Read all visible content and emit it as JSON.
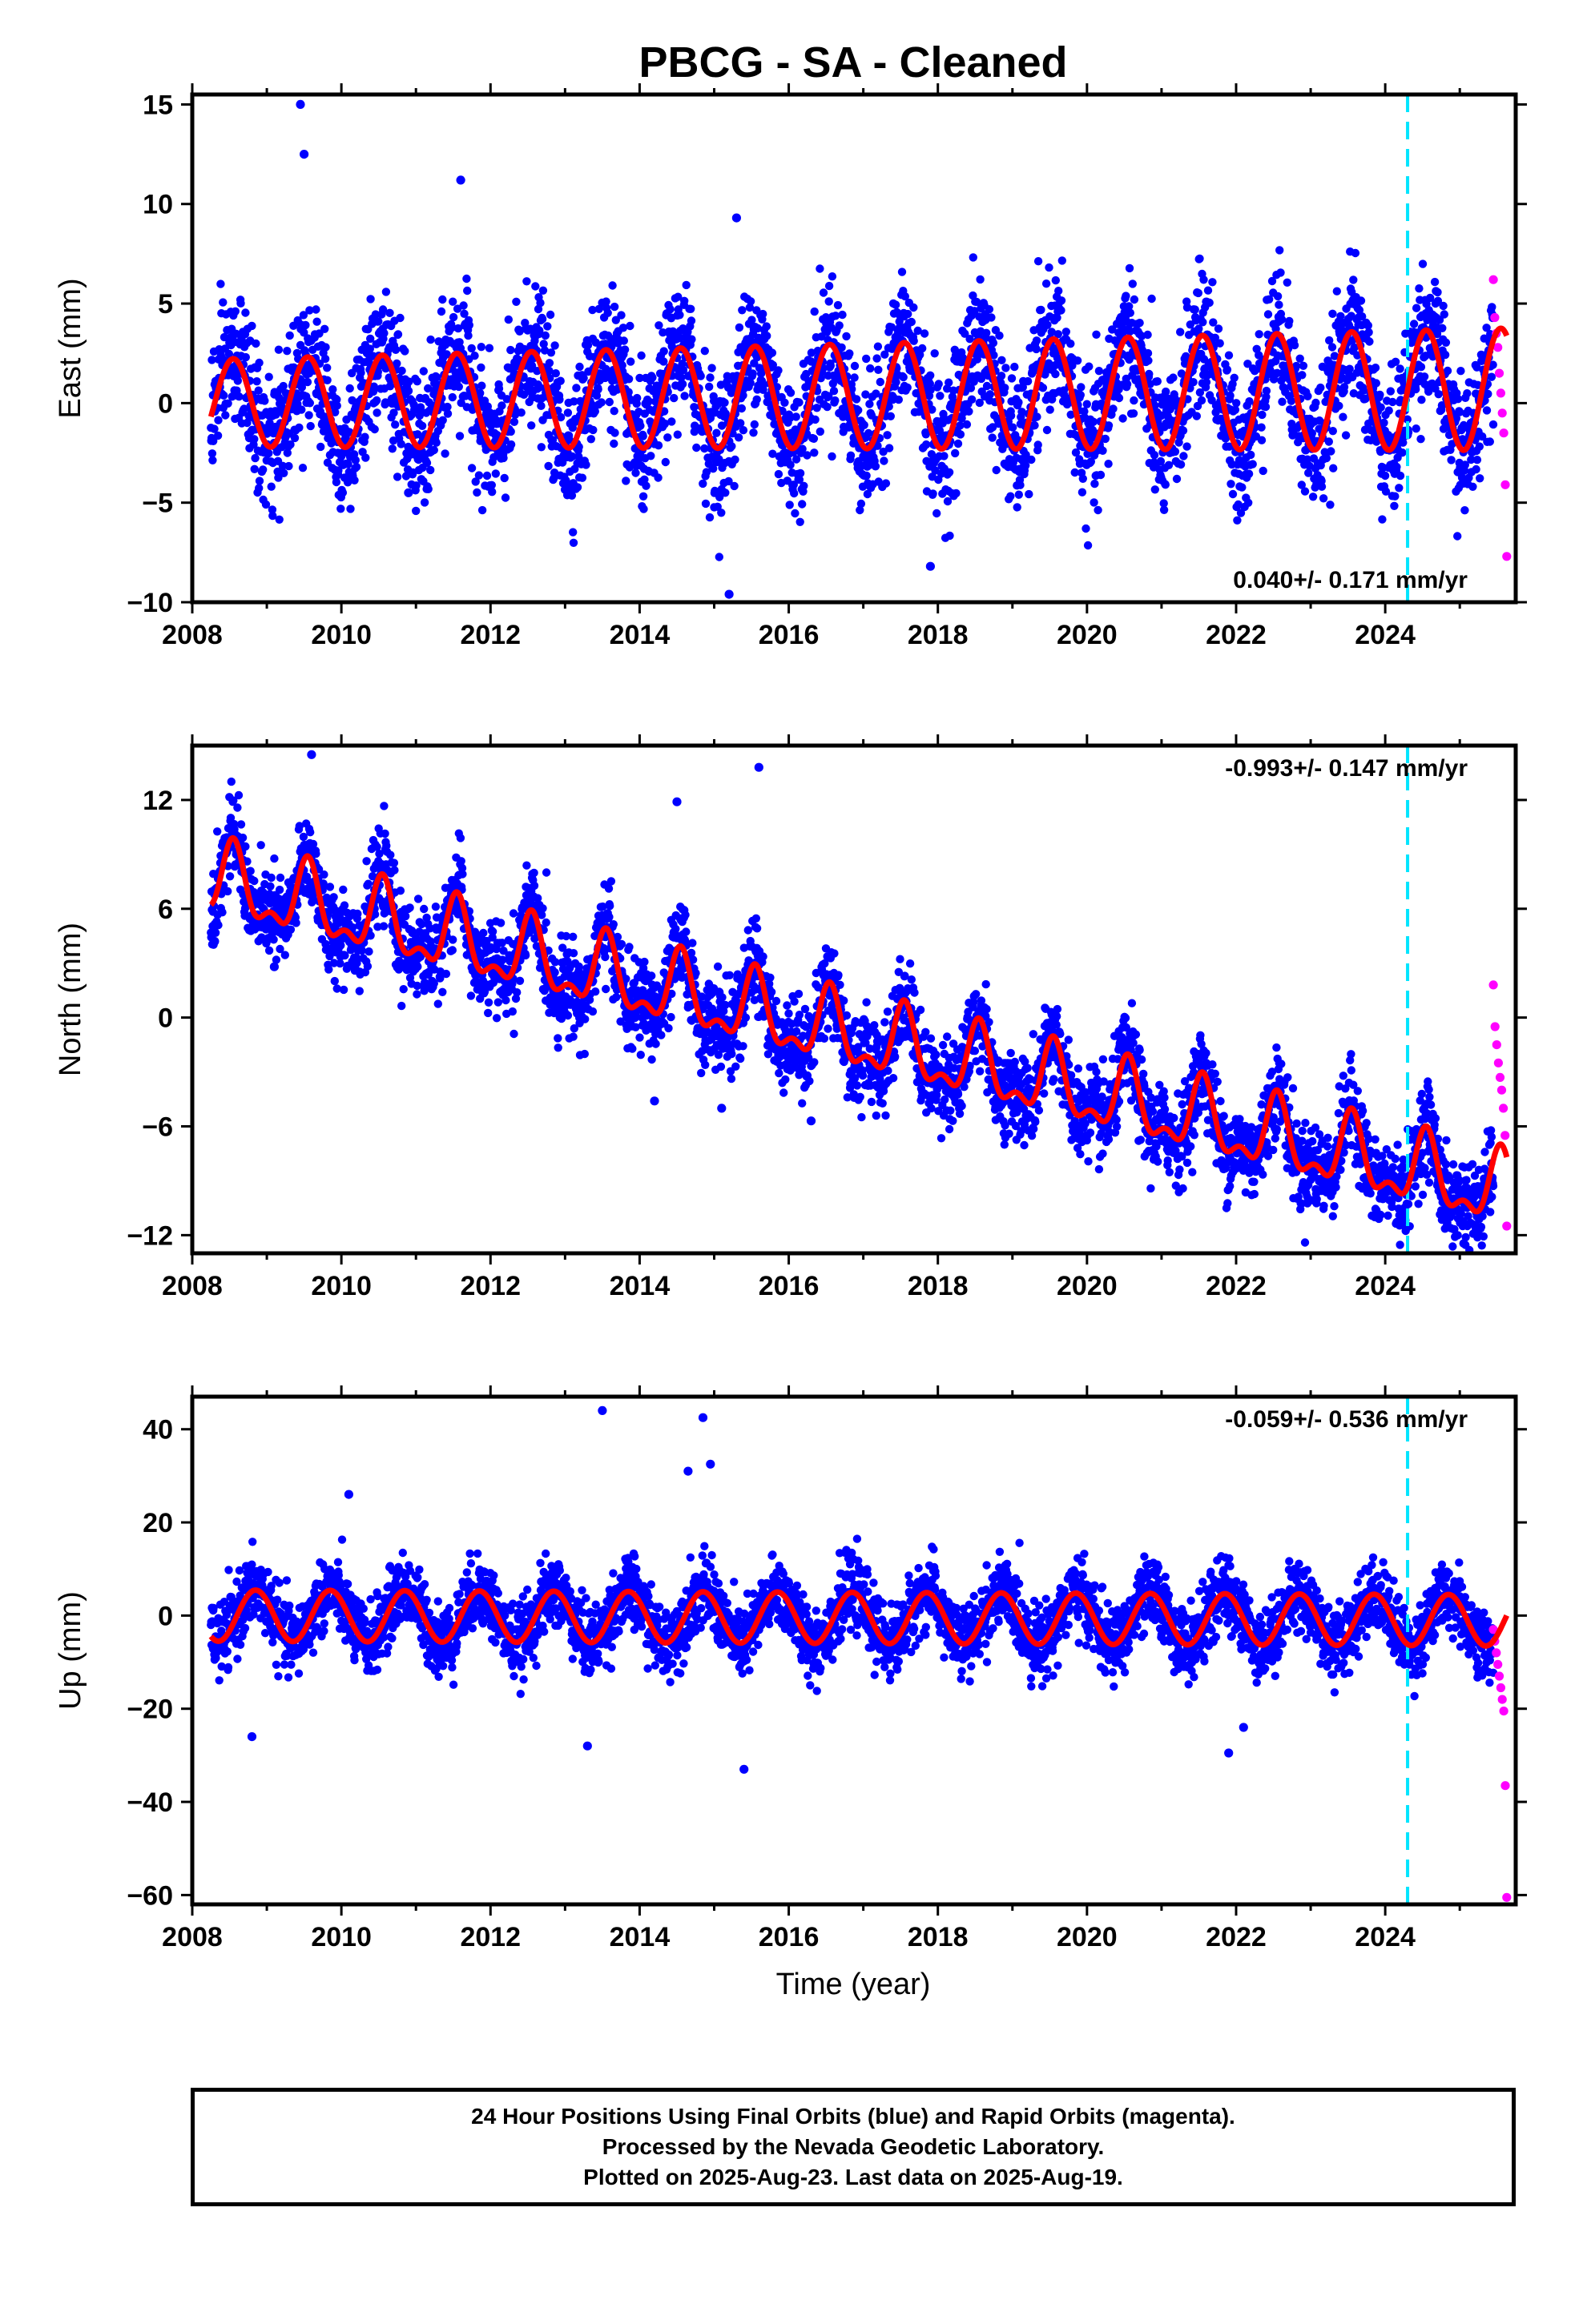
{
  "chart_data": {
    "title": "PBCG  - SA - Cleaned",
    "type": "scatter",
    "xlabel": "Time (year)",
    "xlim": [
      2008.0,
      2025.75
    ],
    "x_ticks": [
      "2008",
      "2010",
      "2012",
      "2014",
      "2016",
      "2018",
      "2020",
      "2022",
      "2024"
    ],
    "data_start": 2008.25,
    "rapid_start": 2025.45,
    "last_data": 2025.63,
    "marker_line_year": 2024.3,
    "colors": {
      "final_orbits": "#0000ff",
      "rapid_orbits": "#ff00ff",
      "model": "#ff0000",
      "marker_line": "#00e5ff"
    },
    "panels": [
      {
        "id": "east",
        "ylabel": "East (mm)",
        "ylim": [
          -10,
          15.5
        ],
        "y_ticks": [
          15,
          10,
          5,
          0,
          -5,
          -10
        ],
        "y_tick_labels": [
          "15",
          "10",
          "5",
          "0",
          "−5",
          "−10"
        ],
        "rate_label": "0.040+/- 0.171 mm/yr",
        "rate_position": "bottom-right",
        "velocity_mm_per_yr": 0.04,
        "series_model": {
          "offset": 0.0,
          "annual_amp": 2.2,
          "amp_growth_per_yr": 0.05,
          "phase_peak_fraction": 0.55,
          "semiannual_amp": 0.0,
          "steps": []
        },
        "scatter_spread": 2.2,
        "outliers": [
          [
            2009.45,
            15.0
          ],
          [
            2009.5,
            12.5
          ],
          [
            2011.6,
            11.2
          ],
          [
            2015.3,
            9.3
          ],
          [
            2015.2,
            -9.6
          ],
          [
            2017.9,
            -8.2
          ],
          [
            2010.9,
            -4.5
          ]
        ],
        "rapid_points": [
          6.2,
          4.3,
          3.5,
          2.8,
          1.5,
          0.5,
          -0.5,
          -1.5,
          -4.1,
          -7.7
        ]
      },
      {
        "id": "north",
        "ylabel": "North (mm)",
        "ylim": [
          -13,
          15
        ],
        "y_ticks": [
          12,
          6,
          0,
          -6,
          -12
        ],
        "y_tick_labels": [
          "12",
          "6",
          "0",
          "−6",
          "−12"
        ],
        "rate_label": "-0.993+/- 0.147 mm/yr",
        "rate_position": "top-right",
        "velocity_mm_per_yr": -0.993,
        "series_model": {
          "offset": 7.5,
          "annual_amp": 1.8,
          "amp_growth_per_yr": 0.0,
          "phase_peak_fraction": 0.55,
          "semiannual_amp": 0.9,
          "steps": []
        },
        "scatter_spread": 1.6,
        "outliers": [
          [
            2009.6,
            14.5
          ],
          [
            2015.6,
            13.8
          ],
          [
            2014.5,
            11.9
          ],
          [
            2008.3,
            4.2
          ],
          [
            2009.1,
            2.8
          ],
          [
            2014.2,
            -4.6
          ],
          [
            2015.1,
            -5.0
          ],
          [
            2016.3,
            -5.7
          ]
        ],
        "rapid_points": [
          1.8,
          -0.5,
          -1.5,
          -2.5,
          -3.3,
          -4.0,
          -5.0,
          -6.5,
          -11.5
        ]
      },
      {
        "id": "up",
        "ylabel": "Up (mm)",
        "ylim": [
          -62,
          47
        ],
        "y_ticks": [
          40,
          20,
          0,
          -20,
          -40,
          -60
        ],
        "y_tick_labels": [
          "40",
          "20",
          "0",
          "−20",
          "−40",
          "−60"
        ],
        "rate_label": "-0.059+/- 0.536 mm/yr",
        "rate_position": "top-right",
        "velocity_mm_per_yr": -0.059,
        "series_model": {
          "offset": 0.0,
          "annual_amp": 5.5,
          "amp_growth_per_yr": 0.0,
          "phase_peak_fraction": 0.85,
          "semiannual_amp": 0.0,
          "steps": []
        },
        "scatter_spread": 5.0,
        "outliers": [
          [
            2013.5,
            44.0
          ],
          [
            2014.85,
            42.5
          ],
          [
            2014.95,
            32.5
          ],
          [
            2014.65,
            31.0
          ],
          [
            2010.1,
            26.0
          ],
          [
            2008.8,
            -26.0
          ],
          [
            2013.3,
            -28.0
          ],
          [
            2015.4,
            -33.0
          ],
          [
            2021.9,
            -29.5
          ],
          [
            2022.1,
            -24.0
          ]
        ],
        "rapid_points": [
          -3.0,
          -5.5,
          -8.0,
          -10.5,
          -13.0,
          -15.5,
          -18.0,
          -20.5,
          -36.5,
          -60.5
        ]
      }
    ]
  },
  "footer": {
    "line1": "24 Hour Positions Using Final Orbits (blue) and Rapid Orbits (magenta).",
    "line2": "Processed by the Nevada Geodetic Laboratory.",
    "line3": "Plotted on 2025-Aug-23. Last data on 2025-Aug-19."
  }
}
